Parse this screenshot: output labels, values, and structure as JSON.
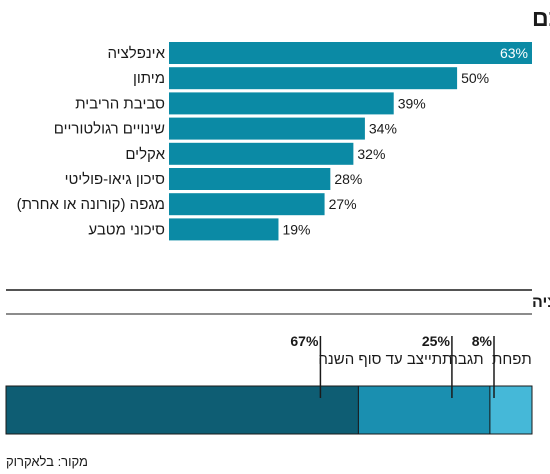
{
  "colors": {
    "bar": "#0b8aa5",
    "divider": "#1a1a1a",
    "stack": [
      "#0e5d73",
      "#1a8fb0",
      "#45b8d8"
    ]
  },
  "chart_data": [
    {
      "type": "bar",
      "orientation": "horizontal",
      "title": "מהו הסיכון המרכזי לאסטרטגיית ההשקעות שלכם",
      "unit": "%",
      "categories": [
        "אינפלציה",
        "מיתון",
        "סביבת הריבית",
        "שינויים רגולטוריים",
        "אקלים",
        "סיכון גיאו-פוליטי",
        "מגפה (קורונה או אחרת)",
        "סיכוני מטבע"
      ],
      "values": [
        63,
        50,
        39,
        34,
        32,
        28,
        27,
        19
      ],
      "value_labels": [
        "63%",
        "50%",
        "39%",
        "34%",
        "32%",
        "28%",
        "27%",
        "19%"
      ],
      "xlim": [
        0,
        63
      ]
    },
    {
      "type": "bar",
      "orientation": "stacked-horizontal",
      "title": "הערכה לגבי התמשכות האינפלציה",
      "unit": "%",
      "segments": [
        {
          "label": "תתייצב עד סוף השנה",
          "value": 67,
          "value_label": "67%"
        },
        {
          "label": "תגבר",
          "value": 25,
          "value_label": "25%"
        },
        {
          "label": "תפחת",
          "value": 8,
          "value_label": "8%"
        }
      ]
    }
  ],
  "source": "מקור: בלאקרוק"
}
